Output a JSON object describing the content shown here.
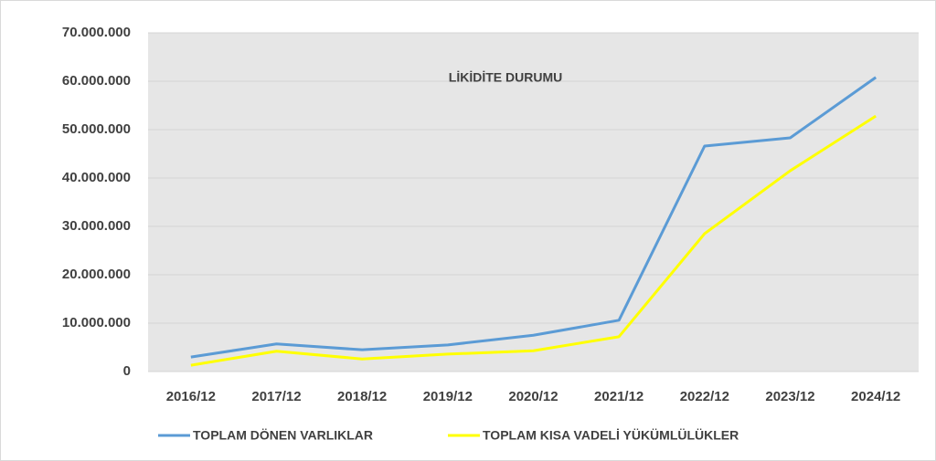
{
  "chart_data": {
    "type": "line",
    "title": "LİKİDİTE DURUMU",
    "categories": [
      "2016/12",
      "2017/12",
      "2018/12",
      "2019/12",
      "2020/12",
      "2021/12",
      "2022/12",
      "2023/12",
      "2024/12"
    ],
    "series": [
      {
        "name": "TOPLAM DÖNEN VARLIKLAR",
        "color": "#5b9bd5",
        "values": [
          3000000,
          5700000,
          4500000,
          5500000,
          7500000,
          10600000,
          46600000,
          48300000,
          60800000
        ]
      },
      {
        "name": "TOPLAM KISA VADELİ YÜKÜMLÜLÜKLER",
        "color": "#ffff00",
        "values": [
          1300000,
          4200000,
          2600000,
          3600000,
          4300000,
          7200000,
          28500000,
          41500000,
          52800000
        ]
      }
    ],
    "ylim": [
      0,
      70000000
    ],
    "yticks": [
      0,
      {
        "value": 10000000,
        "label": "10.000.000"
      },
      {
        "value": 20000000,
        "label": "20.000.000"
      },
      {
        "value": 30000000,
        "label": "30.000.000"
      },
      {
        "value": 40000000,
        "label": "40.000.000"
      },
      {
        "value": 50000000,
        "label": "50.000.000"
      },
      {
        "value": 60000000,
        "label": "60.000.000"
      },
      {
        "value": 70000000,
        "label": "70.000.000"
      }
    ],
    "grid": true,
    "legend": "bottom"
  }
}
